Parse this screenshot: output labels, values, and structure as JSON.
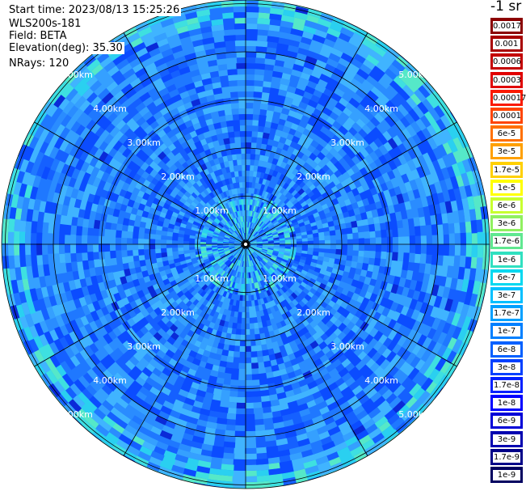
{
  "info": {
    "start_time": "Start time: 2023/08/13 15:25:26",
    "device": "WLS200s-181",
    "field": "Field: BETA",
    "elevation": "Elevation(deg): 35.30",
    "nrays": "NRays: 120"
  },
  "legend": {
    "unit": "-1 sr",
    "items": [
      {
        "label": "0.0017",
        "color": "#8b0000"
      },
      {
        "label": "0.001",
        "color": "#a80000"
      },
      {
        "label": "0.0006",
        "color": "#c40000"
      },
      {
        "label": "0.0003",
        "color": "#e00000"
      },
      {
        "label": "0.00017",
        "color": "#fa1a00"
      },
      {
        "label": "0.0001",
        "color": "#ff4400"
      },
      {
        "label": "6e-5",
        "color": "#ff7000"
      },
      {
        "label": "3e-5",
        "color": "#ffa000"
      },
      {
        "label": "1.7e-5",
        "color": "#ffd000"
      },
      {
        "label": "1e-5",
        "color": "#ffff00"
      },
      {
        "label": "6e-6",
        "color": "#c8ff30"
      },
      {
        "label": "3e-6",
        "color": "#90f060"
      },
      {
        "label": "1.7e-6",
        "color": "#60e890"
      },
      {
        "label": "1e-6",
        "color": "#30e0c0"
      },
      {
        "label": "6e-7",
        "color": "#00d8f0"
      },
      {
        "label": "3e-7",
        "color": "#00c0ff"
      },
      {
        "label": "1.7e-7",
        "color": "#00a0ff"
      },
      {
        "label": "1e-7",
        "color": "#0080ff"
      },
      {
        "label": "6e-8",
        "color": "#0060ff"
      },
      {
        "label": "3e-8",
        "color": "#0040ff"
      },
      {
        "label": "1.7e-8",
        "color": "#0020ff"
      },
      {
        "label": "1e-8",
        "color": "#0000ff"
      },
      {
        "label": "6e-9",
        "color": "#0000d8"
      },
      {
        "label": "3e-9",
        "color": "#0000b0"
      },
      {
        "label": "1.7e-9",
        "color": "#000088"
      },
      {
        "label": "1e-9",
        "color": "#000060"
      }
    ]
  },
  "range_labels": [
    "1.00km",
    "2.00km",
    "3.00km",
    "4.00km",
    "5.00km"
  ],
  "colors": {
    "background": "#ffffff",
    "grid": "#000000",
    "range_label_text": "#ffffff"
  }
}
